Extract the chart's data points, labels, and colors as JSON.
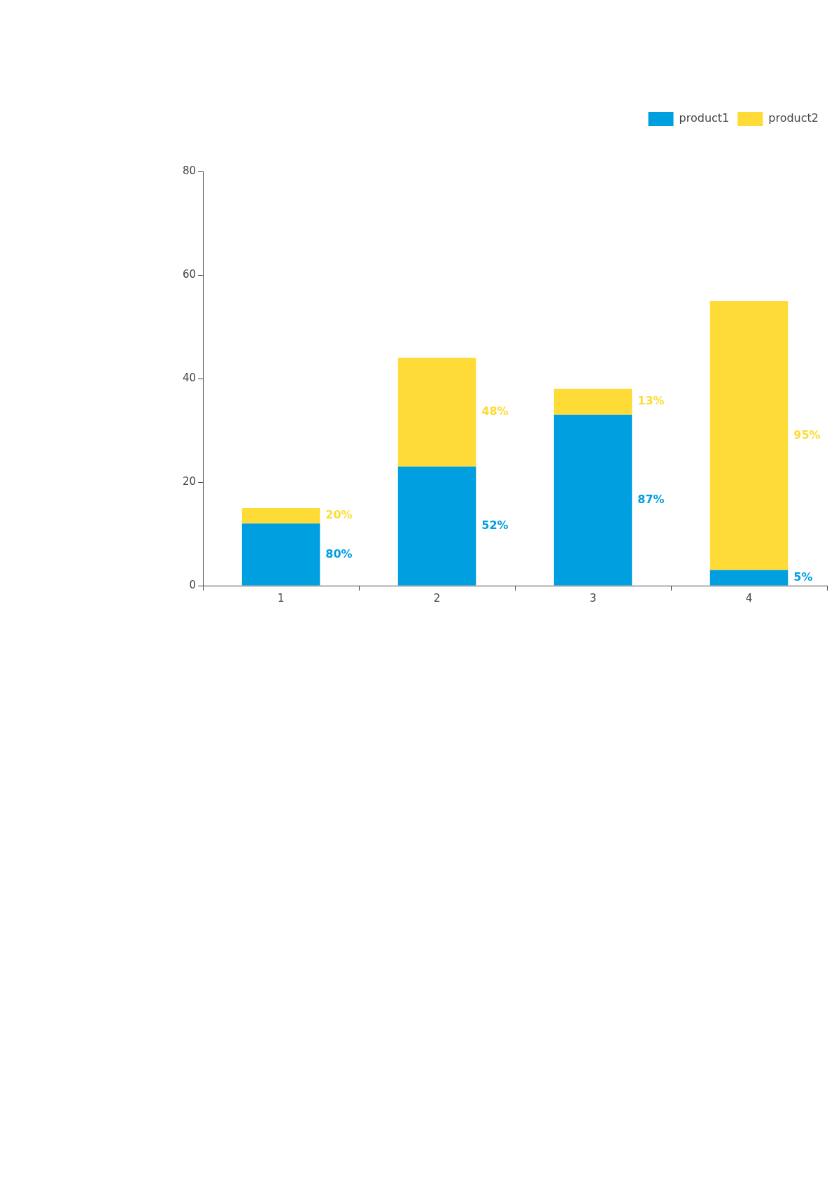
{
  "chart_data": {
    "type": "bar",
    "stacked": true,
    "categories": [
      "1",
      "2",
      "3",
      "4"
    ],
    "series": [
      {
        "name": "product1",
        "color": "#009fdf",
        "values": [
          12,
          23,
          33,
          3
        ]
      },
      {
        "name": "product2",
        "color": "#fedb36",
        "values": [
          3,
          21,
          5,
          52
        ]
      }
    ],
    "annotations": [
      "80%",
      "52%",
      "87%",
      "5%",
      "20%",
      "48%",
      "13%",
      "95%"
    ],
    "ylim": [
      0,
      80
    ],
    "yticks": [
      0,
      20,
      40,
      60,
      80
    ],
    "grid": false,
    "legend": "top right"
  }
}
